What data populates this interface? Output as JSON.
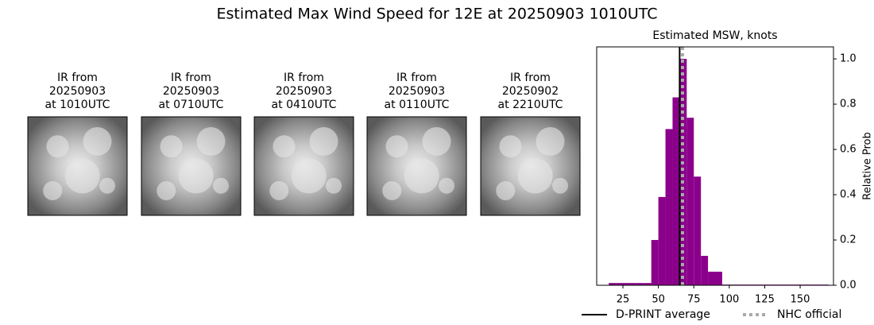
{
  "title": "Estimated Max Wind Speed for 12E at 20250903 1010UTC",
  "panels": [
    {
      "lines": [
        "IR from",
        "20250903",
        "at 1010UTC"
      ]
    },
    {
      "lines": [
        "IR from",
        "20250903",
        "at 0710UTC"
      ]
    },
    {
      "lines": [
        "IR from",
        "20250903",
        "at 0410UTC"
      ]
    },
    {
      "lines": [
        "IR from",
        "20250903",
        "at 0110UTC"
      ]
    },
    {
      "lines": [
        "IR from",
        "20250902",
        "at 2210UTC"
      ]
    }
  ],
  "chart_data": {
    "type": "histogram",
    "title": "Estimated MSW, knots",
    "ylabel": "Relative Prob",
    "color": "#8b008b",
    "bins": [
      15,
      20,
      25,
      30,
      35,
      40,
      45,
      50,
      55,
      60,
      65,
      70,
      75,
      80,
      85,
      90,
      95,
      100,
      105,
      110,
      115,
      120,
      125,
      130,
      135,
      140,
      145,
      150,
      155,
      160,
      165,
      170
    ],
    "values": [
      0.01,
      0.01,
      0.01,
      0.01,
      0.01,
      0.01,
      0.2,
      0.39,
      0.69,
      0.83,
      1.0,
      0.74,
      0.48,
      0.13,
      0.06,
      0.06,
      0.003,
      0.003,
      0.003,
      0.003,
      0.003,
      0.003,
      0.003,
      0.003,
      0.003,
      0.003,
      0.003,
      0.003,
      0.003,
      0.003,
      0.003
    ],
    "lines": [
      {
        "name": "D-PRINT average",
        "x": 65,
        "color": "#000000",
        "style": "solid"
      },
      {
        "name": "NHC official",
        "x": 67,
        "color": "#aaaaaa",
        "style": "dotted"
      }
    ],
    "xlim": [
      6.5,
      173.5
    ],
    "xticks": [
      25,
      50,
      75,
      100,
      125,
      150
    ],
    "ylim": [
      0,
      1.053
    ],
    "yticks": [
      {
        "value": 0,
        "label": "0.0"
      },
      0.2,
      0.4,
      0.6,
      0.8,
      {
        "value": 1,
        "label": "1.0"
      }
    ],
    "yaxis_side": "right"
  }
}
